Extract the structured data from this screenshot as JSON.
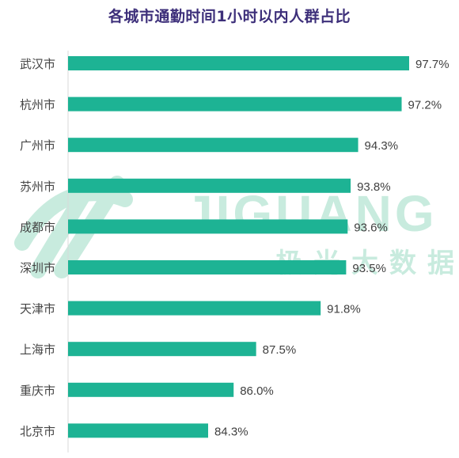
{
  "title": "各城市通勤时间1小时以内人群占比",
  "watermark": {
    "brand": "JIGUANG",
    "brand_cn": "极光大数据"
  },
  "colors": {
    "bar": "#1db394",
    "title": "#3d2f7a",
    "axis": "#d9d9d9",
    "watermark": "#c8ebde"
  },
  "chart_data": {
    "type": "bar",
    "orientation": "horizontal",
    "title": "各城市通勤时间1小时以内人群占比",
    "categories": [
      "武汉市",
      "杭州市",
      "广州市",
      "苏州市",
      "成都市",
      "深圳市",
      "天津市",
      "上海市",
      "重庆市",
      "北京市"
    ],
    "values": [
      97.7,
      97.2,
      94.3,
      93.8,
      93.6,
      93.5,
      91.8,
      87.5,
      86.0,
      84.3
    ],
    "value_labels": [
      "97.7%",
      "97.2%",
      "94.3%",
      "93.8%",
      "93.6%",
      "93.5%",
      "91.8%",
      "87.5%",
      "86.0%",
      "84.3%"
    ],
    "xlabel": "",
    "ylabel": "",
    "xlim": [
      70,
      100
    ],
    "grid": false,
    "legend": "none"
  }
}
